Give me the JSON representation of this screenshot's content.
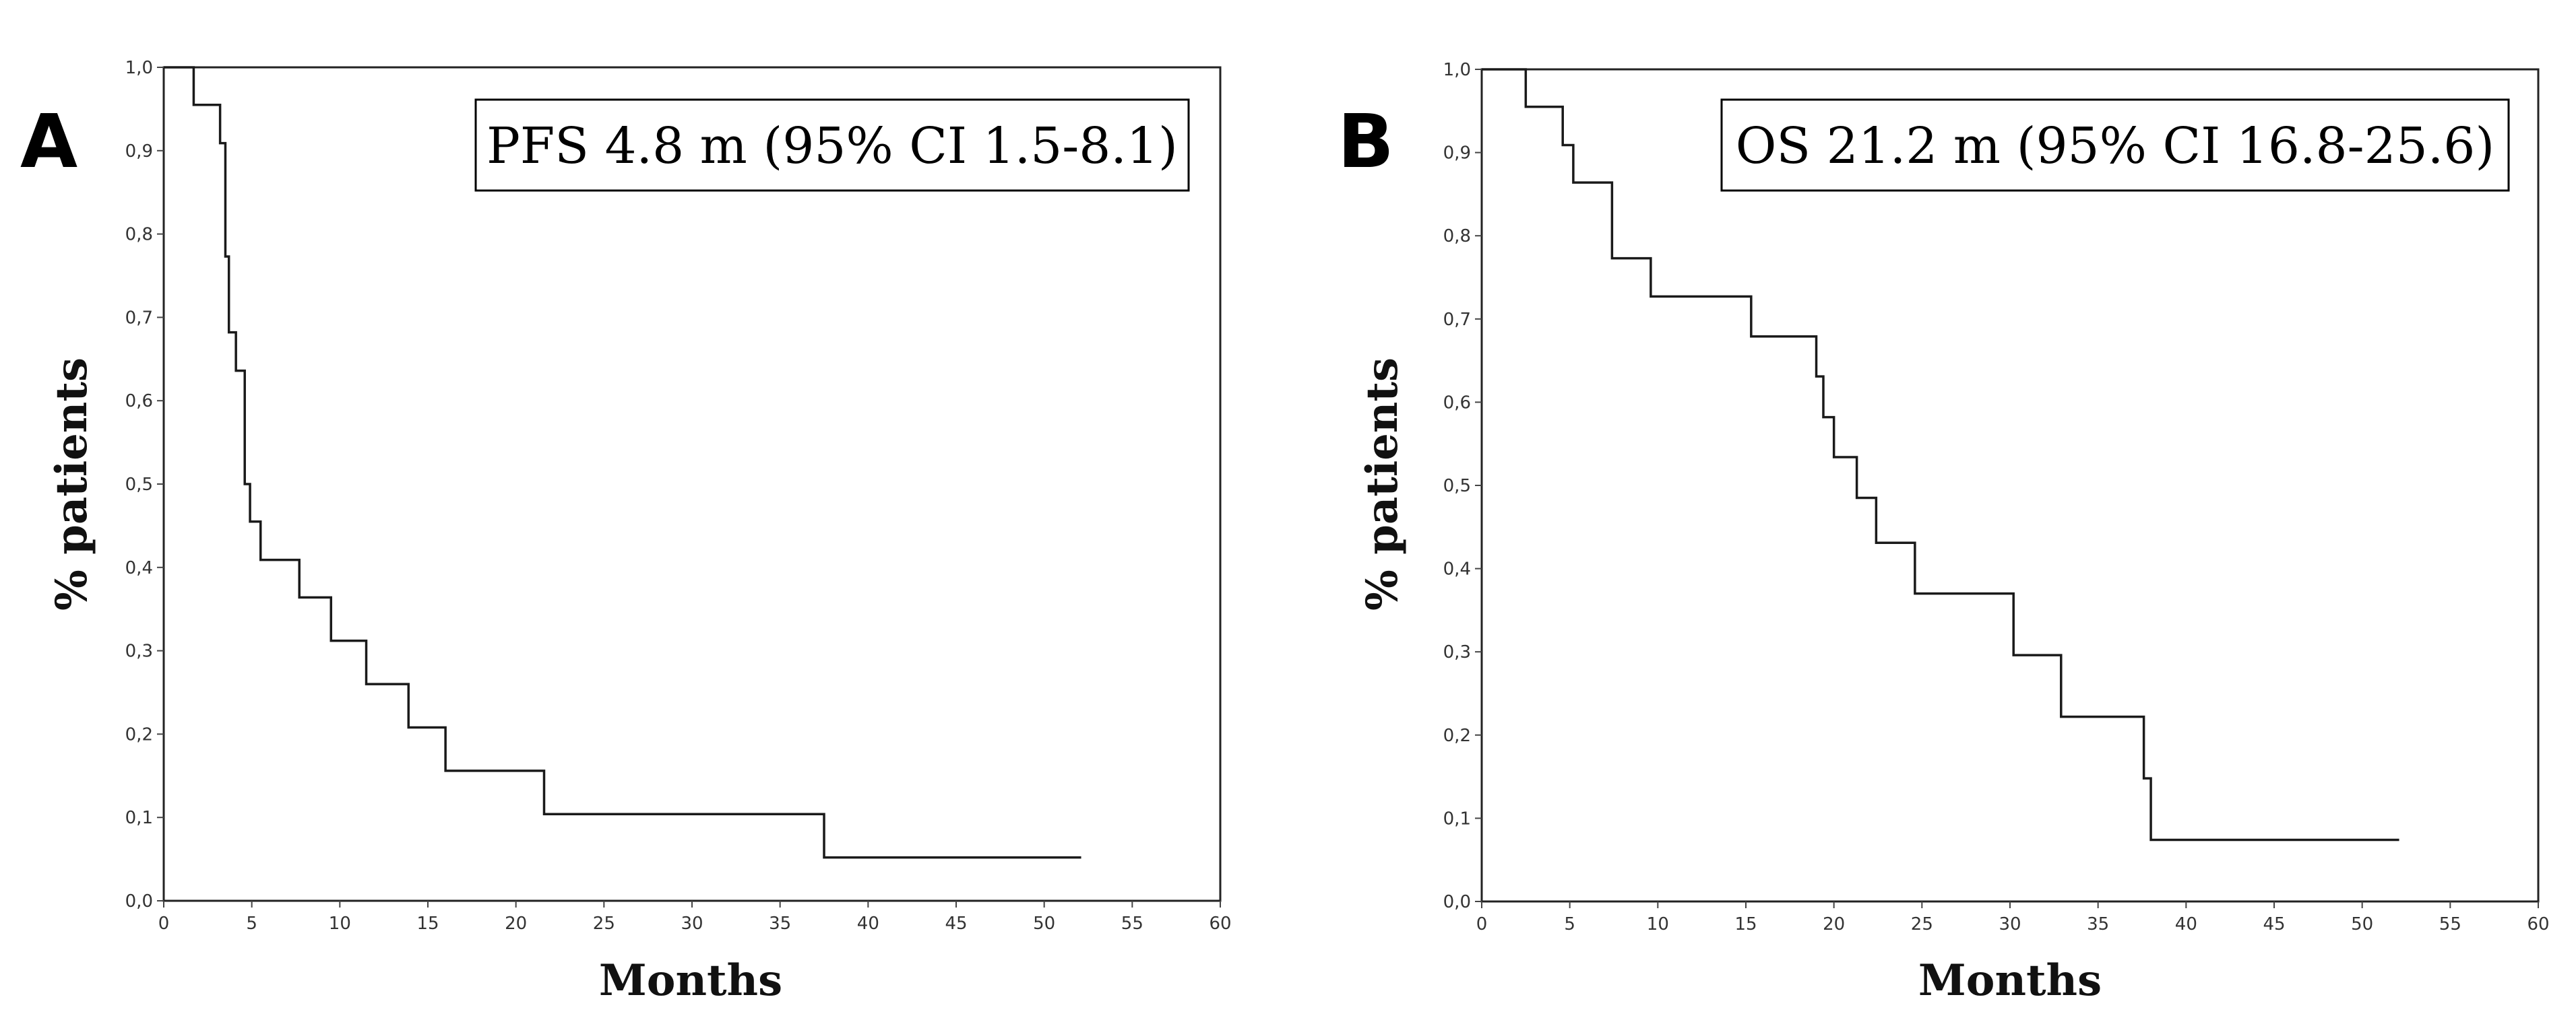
{
  "chart_data": [
    {
      "type": "line",
      "panel_label": "A",
      "annotation": "PFS 4.8 m (95% CI 1.5-8.1)",
      "xlabel": "Months",
      "ylabel": "% patients",
      "xlim": [
        0,
        60
      ],
      "ylim": [
        0,
        1
      ],
      "x_ticks": [
        0,
        5,
        10,
        15,
        20,
        25,
        30,
        35,
        40,
        45,
        50,
        55,
        60
      ],
      "y_ticks": [
        "0,0",
        "0,1",
        "0,2",
        "0,3",
        "0,4",
        "0,5",
        "0,6",
        "0,7",
        "0,8",
        "0,9",
        "1,0"
      ],
      "grid": false,
      "series": [
        {
          "step": true,
          "x": [
            0,
            1.7,
            3.2,
            3.5,
            3.7,
            4.1,
            4.6,
            4.9,
            5.5,
            7.7,
            9.5,
            11.5,
            13.9,
            16.0,
            21.6,
            27.6,
            37.5,
            52.1
          ],
          "y": [
            1.0,
            0.955,
            0.909,
            0.773,
            0.682,
            0.636,
            0.5,
            0.455,
            0.409,
            0.364,
            0.312,
            0.26,
            0.208,
            0.156,
            0.104,
            0.104,
            0.052,
            0.052
          ]
        }
      ]
    },
    {
      "type": "line",
      "panel_label": "B",
      "annotation": "OS 21.2 m (95% CI 16.8-25.6)",
      "xlabel": "Months",
      "ylabel": "% patients",
      "xlim": [
        0,
        60
      ],
      "ylim": [
        0,
        1
      ],
      "x_ticks": [
        0,
        5,
        10,
        15,
        20,
        25,
        30,
        35,
        40,
        45,
        50,
        55,
        60
      ],
      "y_ticks": [
        "0,0",
        "0,1",
        "0,2",
        "0,3",
        "0,4",
        "0,5",
        "0,6",
        "0,7",
        "0,8",
        "0,9",
        "1,0"
      ],
      "grid": false,
      "series": [
        {
          "step": true,
          "x": [
            0,
            2.5,
            4.6,
            5.2,
            7.4,
            9.6,
            15.3,
            19.0,
            19.4,
            20.0,
            21.3,
            22.4,
            24.6,
            30.2,
            32.9,
            37.6,
            38.0,
            52.1
          ],
          "y": [
            1.0,
            0.955,
            0.909,
            0.864,
            0.773,
            0.727,
            0.679,
            0.631,
            0.582,
            0.534,
            0.485,
            0.431,
            0.37,
            0.296,
            0.222,
            0.148,
            0.074,
            0.074
          ]
        }
      ]
    }
  ]
}
